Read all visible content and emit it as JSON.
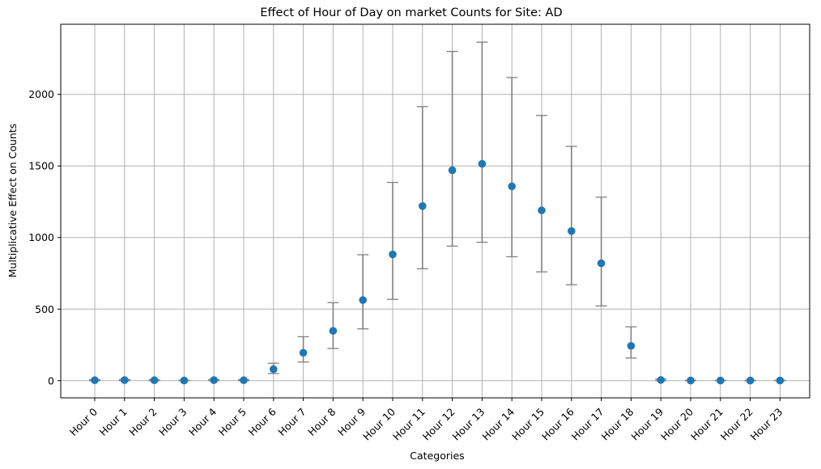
{
  "chart_data": {
    "type": "scatter",
    "title": "Effect of Hour of Day on market Counts for Site: AD",
    "xlabel": "Categories",
    "ylabel": "Multiplicative Effect on Counts",
    "categories": [
      "Hour 0",
      "Hour 1",
      "Hour 2",
      "Hour 3",
      "Hour 4",
      "Hour 5",
      "Hour 6",
      "Hour 7",
      "Hour 8",
      "Hour 9",
      "Hour 10",
      "Hour 11",
      "Hour 12",
      "Hour 13",
      "Hour 14",
      "Hour 15",
      "Hour 16",
      "Hour 17",
      "Hour 18",
      "Hour 19",
      "Hour 20",
      "Hour 21",
      "Hour 22",
      "Hour 23"
    ],
    "series": [
      {
        "values": [
          3,
          4,
          3,
          1,
          4,
          3,
          80,
          195,
          348,
          563,
          882,
          1220,
          1470,
          1515,
          1358,
          1190,
          1045,
          820,
          243,
          5,
          1,
          1,
          1,
          1
        ],
        "lower": [
          0,
          0,
          0,
          0,
          0,
          0,
          50,
          130,
          225,
          362,
          568,
          782,
          940,
          967,
          866,
          760,
          670,
          522,
          158,
          0,
          0,
          0,
          0,
          0
        ],
        "upper": [
          7,
          8,
          7,
          3,
          8,
          7,
          122,
          307,
          545,
          880,
          1385,
          1915,
          2300,
          2365,
          2118,
          1853,
          1637,
          1282,
          376,
          11,
          3,
          3,
          3,
          3
        ]
      }
    ],
    "yticks": [
      0,
      500,
      1000,
      1500,
      2000
    ],
    "ylim": [
      -120,
      2490
    ],
    "grid": true,
    "colors": {
      "point": "#1f77b4",
      "errorbar": "#808080",
      "grid": "#b0b0b0"
    }
  }
}
